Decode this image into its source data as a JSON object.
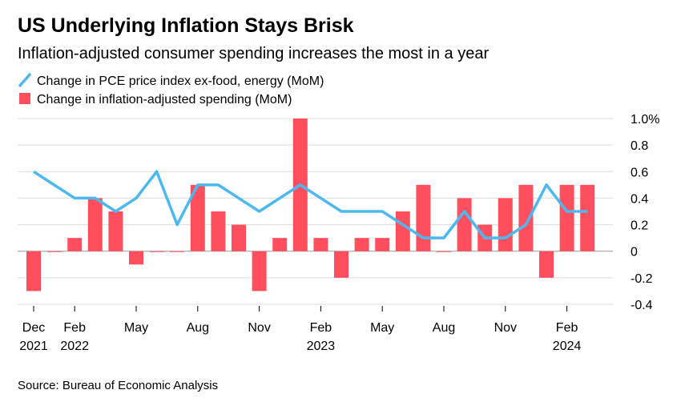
{
  "chart_data": {
    "type": "bar_line",
    "title": "US Underlying Inflation Stays Brisk",
    "subtitle": "Inflation-adjusted consumer spending increases the most in a year",
    "source": "Source: Bureau of Economic Analysis",
    "categories": [
      "Dec 2021",
      null,
      "Feb 2022",
      null,
      null,
      "May",
      null,
      null,
      "Aug",
      null,
      null,
      "Nov",
      null,
      null,
      "Feb 2023",
      null,
      null,
      "May",
      null,
      null,
      "Aug",
      null,
      null,
      "Nov",
      null,
      null,
      "Feb 2024",
      null
    ],
    "series": [
      {
        "name": "Change in PCE price index ex-food, energy (MoM)",
        "type": "line",
        "color": "#4cb8f0",
        "values": [
          0.6,
          0.5,
          0.4,
          0.4,
          0.3,
          0.4,
          0.6,
          0.2,
          0.5,
          0.5,
          0.4,
          0.3,
          0.4,
          0.5,
          0.4,
          0.3,
          0.3,
          0.3,
          0.2,
          0.1,
          0.1,
          0.3,
          0.1,
          0.1,
          0.2,
          0.5,
          0.3,
          0.3
        ]
      },
      {
        "name": "Change in inflation-adjusted spending (MoM)",
        "type": "bar",
        "color": "#ff4f5e",
        "values": [
          -0.3,
          0,
          0.1,
          0.4,
          0.3,
          -0.1,
          0,
          0,
          0.5,
          0.3,
          0.2,
          -0.3,
          0.1,
          1.0,
          0.1,
          -0.2,
          0.1,
          0.1,
          0.3,
          0.5,
          0,
          0.4,
          0.2,
          0.4,
          0.5,
          -0.2,
          0.5,
          0.5
        ]
      }
    ],
    "ylim": [
      -0.4,
      1.0
    ],
    "yticks": [
      {
        "value": 1.0,
        "label": "1.0%"
      },
      0.8,
      0.6,
      0.4,
      0.2,
      0,
      -0.2,
      -0.4
    ],
    "grid": true
  }
}
